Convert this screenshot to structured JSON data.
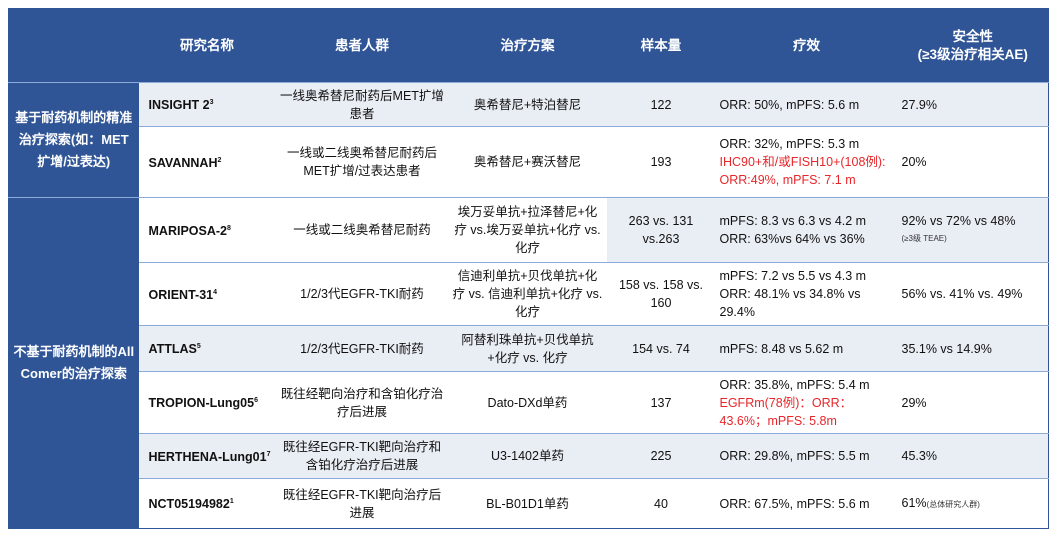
{
  "headers": [
    "",
    "研究名称",
    "患者人群",
    "治疗方案",
    "样本量",
    "疗效",
    "安全性",
    "(≥3级治疗相关AE)"
  ],
  "groups": [
    {
      "label": "基于耐药机制的精准治疗探索(如：MET扩增/过表达)"
    },
    {
      "label": "不基于耐药机制的All Comer的治疗探索"
    }
  ],
  "rows": [
    {
      "name": "INSIGHT 2",
      "ref": "3",
      "population": "一线奥希替尼耐药后MET扩增患者",
      "regimen": "奥希替尼+特泊替尼",
      "n": "122",
      "efficacy": "ORR: 50%, mPFS: 5.6 m",
      "efficacy_red": "",
      "safety": "27.9%",
      "safety_note": ""
    },
    {
      "name": "SAVANNAH",
      "ref": "2",
      "population": "一线或二线奥希替尼耐药后MET扩增/过表达患者",
      "regimen": "奥希替尼+赛沃替尼",
      "n": "193",
      "efficacy": "ORR: 32%, mPFS: 5.3 m",
      "efficacy_red": "IHC90+和/或FISH10+(108例): ORR:49%, mPFS: 7.1 m",
      "safety": "20%",
      "safety_note": ""
    },
    {
      "name": "MARIPOSA-2",
      "ref": "8",
      "population": "一线或二线奥希替尼耐药",
      "regimen": "埃万妥单抗+拉泽替尼+化疗 vs.埃万妥单抗+化疗 vs. 化疗",
      "n": "263 vs. 131 vs.263",
      "efficacy": "mPFS: 8.3 vs 6.3 vs 4.2 m ORR: 63%vs 64% vs 36%",
      "efficacy_red": "",
      "safety": "92% vs 72% vs 48%",
      "safety_note": "(≥3级 TEAE)"
    },
    {
      "name": "ORIENT-31",
      "ref": "4",
      "population": "1/2/3代EGFR-TKI耐药",
      "regimen": "信迪利单抗+贝伐单抗+化疗 vs. 信迪利单抗+化疗 vs. 化疗",
      "n": "158 vs. 158 vs. 160",
      "efficacy": "mPFS: 7.2 vs 5.5 vs 4.3 m ORR: 48.1% vs 34.8% vs 29.4%",
      "efficacy_red": "",
      "safety": "56% vs. 41% vs. 49%",
      "safety_note": ""
    },
    {
      "name": "ATTLAS",
      "ref": "5",
      "population": "1/2/3代EGFR-TKI耐药",
      "regimen": "阿替利珠单抗+贝伐单抗+化疗 vs. 化疗",
      "n": "154 vs. 74",
      "efficacy": "mPFS: 8.48 vs 5.62 m",
      "efficacy_red": "",
      "safety": "35.1% vs 14.9%",
      "safety_note": ""
    },
    {
      "name": "TROPION-Lung05",
      "ref": "6",
      "population": "既往经靶向治疗和含铂化疗治疗后进展",
      "regimen": "Dato-DXd单药",
      "n": "137",
      "efficacy": "ORR: 35.8%, mPFS: 5.4 m",
      "efficacy_red": "EGFRm(78例)：ORR：43.6%；mPFS: 5.8m",
      "safety": "29%",
      "safety_note": ""
    },
    {
      "name": "HERTHENA-Lung01",
      "ref": "7",
      "population": "既往经EGFR-TKI靶向治疗和含铂化疗治疗后进展",
      "regimen": "U3-1402单药",
      "n": "225",
      "efficacy": "ORR: 29.8%, mPFS: 5.5 m",
      "efficacy_red": "",
      "safety": "45.3%",
      "safety_note": ""
    },
    {
      "name": "NCT05194982",
      "ref": "1",
      "population": "既往经EGFR-TKI靶向治疗后进展",
      "regimen": "BL-B01D1单药",
      "n": "40",
      "efficacy": "ORR: 67.5%, mPFS: 5.6 m",
      "efficacy_red": "",
      "safety": "61%",
      "safety_note": "(总体研究人群)"
    }
  ],
  "colors": {
    "header": "#2f5597",
    "alt_row": "#e9edf4",
    "highlight": "#e8262a",
    "border": "#8eaadb"
  }
}
